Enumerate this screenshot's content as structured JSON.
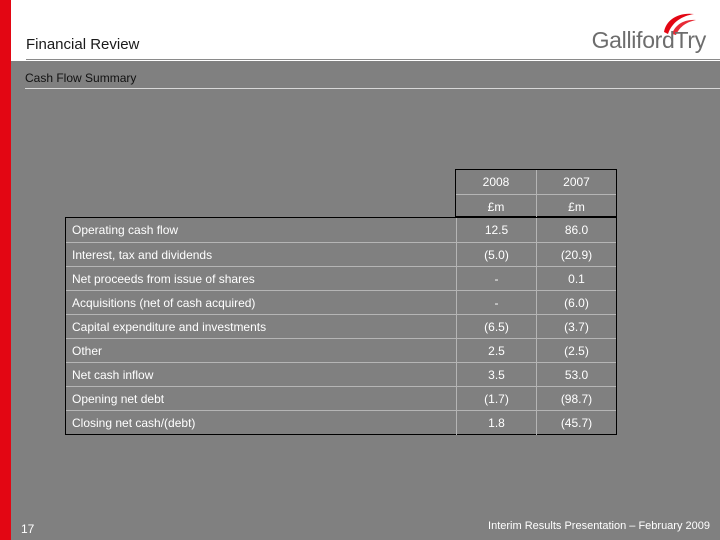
{
  "header": {
    "title": "Financial Review",
    "logo_text": "GallifordTry"
  },
  "colors": {
    "accent_red": "#e30613",
    "content_bg": "#808080",
    "logo_gray": "#6d6d6d"
  },
  "section": {
    "subtitle": "Cash Flow Summary"
  },
  "table": {
    "columns": [
      {
        "year": "2008",
        "unit": "£m"
      },
      {
        "year": "2007",
        "unit": "£m"
      }
    ],
    "rows": [
      {
        "label": "Operating cash flow",
        "v2008": "12.5",
        "v2007": "86.0"
      },
      {
        "label": "Interest, tax and dividends",
        "v2008": "(5.0)",
        "v2007": "(20.9)"
      },
      {
        "label": "Net proceeds from issue of shares",
        "v2008": "-",
        "v2007": "0.1"
      },
      {
        "label": "Acquisitions (net of cash acquired)",
        "v2008": "-",
        "v2007": "(6.0)"
      },
      {
        "label": "Capital expenditure and investments",
        "v2008": "(6.5)",
        "v2007": "(3.7)"
      },
      {
        "label": "Other",
        "v2008": "2.5",
        "v2007": "(2.5)"
      },
      {
        "label": "Net cash inflow",
        "v2008": "3.5",
        "v2007": "53.0"
      },
      {
        "label": "Opening net debt",
        "v2008": "(1.7)",
        "v2007": "(98.7)"
      },
      {
        "label": "Closing net  cash/(debt)",
        "v2008": "1.8",
        "v2007": "(45.7)"
      }
    ]
  },
  "footer": {
    "page_number": "17",
    "text": "Interim Results Presentation – February 2009"
  }
}
